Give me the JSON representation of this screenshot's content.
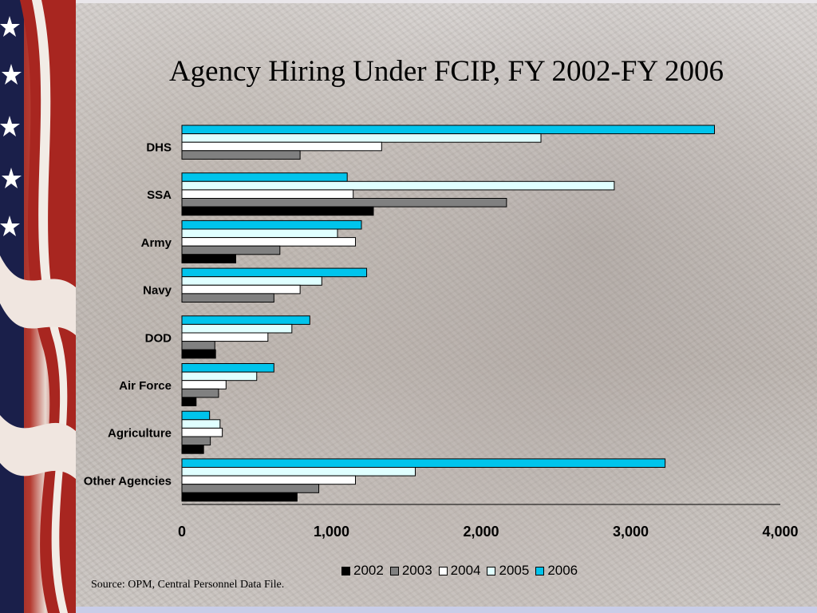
{
  "slide": {
    "title": "Agency Hiring Under FCIP, FY 2002-FY 2006",
    "source": "Source:  OPM, Central Personnel Data File."
  },
  "chart_data": {
    "type": "bar",
    "orientation": "horizontal",
    "categories": [
      "DHS",
      "SSA",
      "Army",
      "Navy",
      "DOD",
      "Air Force",
      "Agriculture",
      "Other Agencies"
    ],
    "series": [
      {
        "name": "2002",
        "color": "#000000",
        "values": [
          0,
          1280,
          360,
          0,
          225,
          95,
          145,
          770
        ]
      },
      {
        "name": "2003",
        "color": "#808080",
        "values": [
          790,
          2170,
          655,
          615,
          220,
          245,
          190,
          915
        ]
      },
      {
        "name": "2004",
        "color": "#ffffff",
        "values": [
          1335,
          1145,
          1160,
          790,
          575,
          295,
          270,
          1160
        ]
      },
      {
        "name": "2005",
        "color": "#e0ffff",
        "values": [
          2400,
          2890,
          1040,
          935,
          735,
          500,
          255,
          1560
        ]
      },
      {
        "name": "2006",
        "color": "#00c4ec",
        "values": [
          3560,
          1105,
          1200,
          1235,
          855,
          615,
          185,
          3230
        ]
      }
    ],
    "xlim": [
      0,
      4000
    ],
    "x_ticks": [
      "0",
      "1,000",
      "2,000",
      "3,000",
      "4,000"
    ],
    "legend_position": "bottom",
    "grid": false
  }
}
